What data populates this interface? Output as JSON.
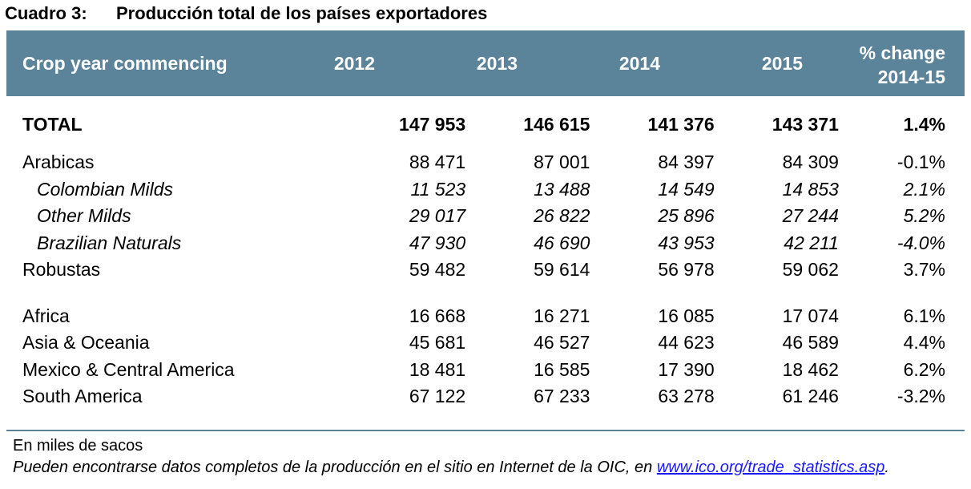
{
  "title": {
    "label": "Cuadro 3:",
    "text": "Producción total de los países exportadores"
  },
  "table": {
    "header": {
      "label": "Crop year commencing",
      "years": [
        "2012",
        "2013",
        "2014",
        "2015"
      ],
      "pct_line1": "% change",
      "pct_line2": "2014-15"
    },
    "rows": [
      {
        "name": "TOTAL",
        "values": [
          "147 953",
          "146 615",
          "141 376",
          "143 371"
        ],
        "pct": "1.4%"
      },
      {
        "name": "Arabicas",
        "values": [
          "88 471",
          "87 001",
          "84 397",
          "84 309"
        ],
        "pct": "-0.1%"
      },
      {
        "name": "Colombian Milds",
        "values": [
          "11 523",
          "13 488",
          "14 549",
          "14 853"
        ],
        "pct": "2.1%"
      },
      {
        "name": "Other Milds",
        "values": [
          "29 017",
          "26 822",
          "25 896",
          "27 244"
        ],
        "pct": "5.2%"
      },
      {
        "name": "Brazilian Naturals",
        "values": [
          "47 930",
          "46 690",
          "43 953",
          "42 211"
        ],
        "pct": "-4.0%"
      },
      {
        "name": "Robustas",
        "values": [
          "59 482",
          "59 614",
          "56 978",
          "59 062"
        ],
        "pct": "3.7%"
      },
      {
        "name": "Africa",
        "values": [
          "16 668",
          "16 271",
          "16 085",
          "17 074"
        ],
        "pct": "6.1%"
      },
      {
        "name": "Asia & Oceania",
        "values": [
          "45 681",
          "46 527",
          "44 623",
          "46 589"
        ],
        "pct": "4.4%"
      },
      {
        "name": "Mexico & Central America",
        "values": [
          "18 481",
          "16 585",
          "17 390",
          "18 462"
        ],
        "pct": "6.2%"
      },
      {
        "name": "South America",
        "values": [
          "67 122",
          "67 233",
          "63 278",
          "61 246"
        ],
        "pct": "-3.2%"
      }
    ]
  },
  "notes": {
    "units": "En miles de sacos",
    "source_text": "Pueden encontrarse datos completos de la producción en el sitio en Internet de la OIC, en ",
    "link": "www.ico.org/trade_statistics.asp",
    "end": "."
  },
  "colors": {
    "header_bg": "#5b8399",
    "header_text": "#ffffff",
    "link": "#1a1aff"
  }
}
